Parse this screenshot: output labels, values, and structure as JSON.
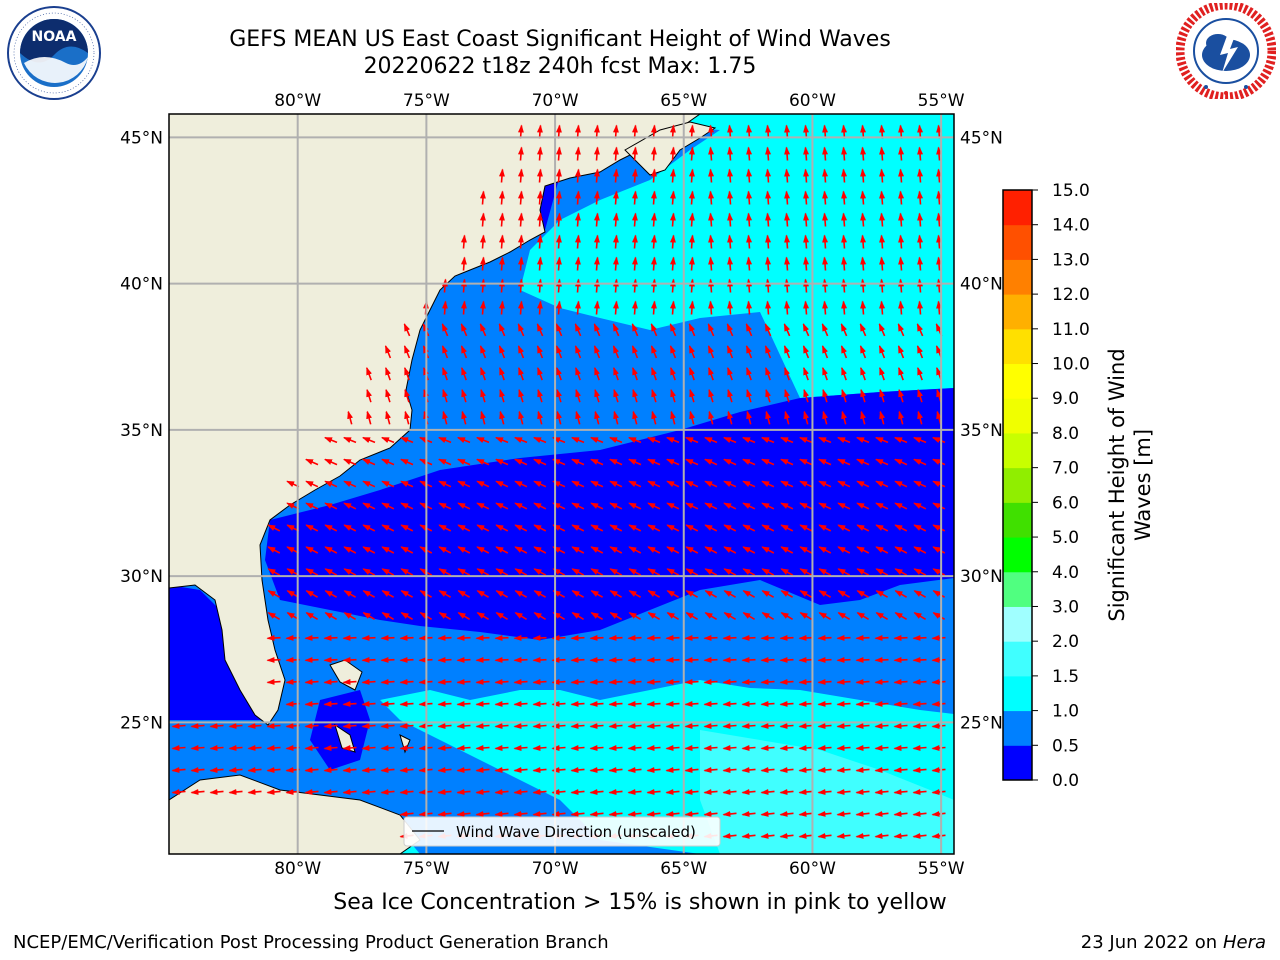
{
  "header": {
    "title_line1": "GEFS MEAN US East Coast Significant Height of Wind Waves",
    "title_line2": "20220622 t18z 240h fcst    Max: 1.75"
  },
  "logos": {
    "left": {
      "name": "noaa-logo",
      "text": "NOAA",
      "ring_text": "NATIONAL OCEANIC AND ATMOSPHERIC ADMINISTRATION · U.S. DEPARTMENT OF COMMERCE"
    },
    "right": {
      "name": "nws-logo",
      "ring_text": "NATIONAL WEATHER SERVICE"
    }
  },
  "map": {
    "lon_ticks": [
      "80°W",
      "75°W",
      "70°W",
      "65°W",
      "60°W",
      "55°W"
    ],
    "lat_ticks": [
      "45°N",
      "40°N",
      "35°N",
      "30°N",
      "25°N"
    ],
    "lon_values": [
      -80,
      -75,
      -70,
      -65,
      -60,
      -55
    ],
    "lat_values": [
      45,
      40,
      35,
      30,
      25
    ],
    "extent": {
      "lon": [
        -85,
        -54.5
      ],
      "lat": [
        20.5,
        45.8
      ]
    },
    "gridlines": true,
    "legend_label": "Wind Wave Direction (unscaled)",
    "land_color": "#efeedc",
    "arrow_color": "#ff0000"
  },
  "colorbar": {
    "title_line1": "Significant Height of Wind",
    "title_line2": "Waves [m]",
    "ticks": [
      "15.0",
      "14.0",
      "13.0",
      "12.0",
      "11.0",
      "10.0",
      "9.0",
      "8.0",
      "7.0",
      "6.0",
      "5.0",
      "4.0",
      "3.0",
      "2.0",
      "1.5",
      "1.0",
      "0.5",
      "0.0"
    ],
    "levels": [
      0,
      0.5,
      1.0,
      1.5,
      2.0,
      3.0,
      4.0,
      5.0,
      6.0,
      7.0,
      8.0,
      9.0,
      10.0,
      11.0,
      12.0,
      13.0,
      14.0,
      15.0
    ],
    "colors": [
      "#0000ff",
      "#0080ff",
      "#00ffff",
      "#40ffff",
      "#a0ffff",
      "#50ff80",
      "#00ff00",
      "#40e000",
      "#90ee00",
      "#c8ff00",
      "#f0ff00",
      "#ffff00",
      "#ffe000",
      "#ffb000",
      "#ff8000",
      "#ff5000",
      "#ff2000",
      "#ff0000"
    ]
  },
  "footer": {
    "note": "Sea Ice Concentration > 15% is shown in pink to yellow",
    "credit": "NCEP/EMC/Verification Post Processing Product Generation Branch",
    "date": "23 Jun 2022 on",
    "machine": "Hera"
  }
}
